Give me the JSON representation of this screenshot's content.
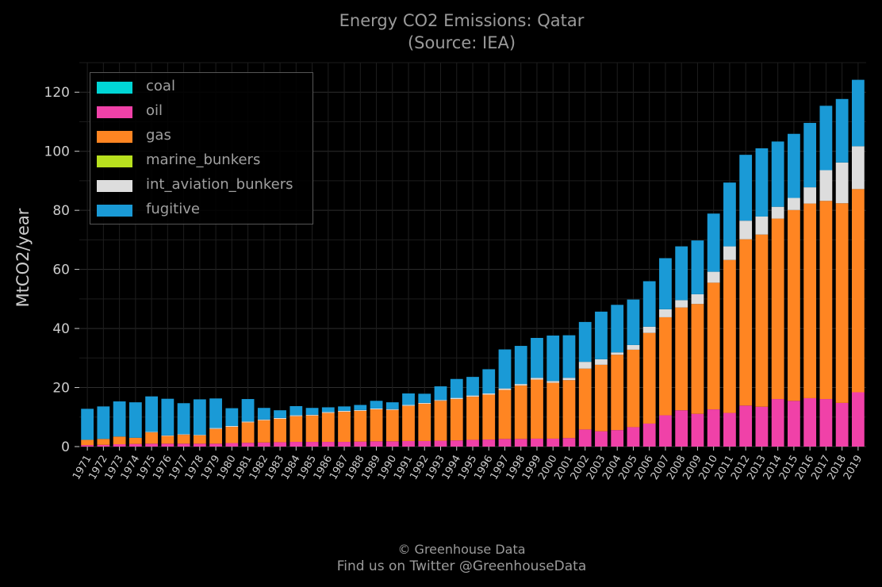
{
  "chart_data": {
    "type": "bar",
    "stacked": true,
    "title": "Energy CO2 Emissions: Qatar",
    "subtitle": "(Source: IEA)",
    "ylabel": "MtCO2/year",
    "xlabel": "",
    "ylim": [
      0,
      130
    ],
    "yticks": [
      0,
      20,
      40,
      60,
      80,
      100,
      120
    ],
    "grid": true,
    "legend_position": "top-left",
    "categories": [
      "1971",
      "1972",
      "1973",
      "1974",
      "1975",
      "1976",
      "1977",
      "1978",
      "1979",
      "1980",
      "1981",
      "1982",
      "1983",
      "1984",
      "1985",
      "1986",
      "1987",
      "1988",
      "1989",
      "1990",
      "1991",
      "1992",
      "1993",
      "1994",
      "1995",
      "1996",
      "1997",
      "1998",
      "1999",
      "2000",
      "2001",
      "2002",
      "2003",
      "2004",
      "2005",
      "2006",
      "2007",
      "2008",
      "2009",
      "2010",
      "2011",
      "2012",
      "2013",
      "2014",
      "2015",
      "2016",
      "2017",
      "2018",
      "2019"
    ],
    "series": [
      {
        "name": "coal",
        "color": "#00d5d5",
        "values": [
          0,
          0,
          0,
          0,
          0,
          0,
          0,
          0,
          0,
          0,
          0,
          0,
          0,
          0,
          0,
          0,
          0,
          0,
          0,
          0,
          0,
          0,
          0,
          0,
          0,
          0,
          0,
          0,
          0,
          0,
          0,
          0,
          0,
          0,
          0,
          0,
          0,
          0,
          0,
          0,
          0,
          0,
          0,
          0,
          0,
          0,
          0,
          0,
          0
        ]
      },
      {
        "name": "oil",
        "color": "#f041a8",
        "values": [
          0.5,
          0.6,
          0.8,
          0.9,
          1.0,
          1.0,
          1.0,
          1.0,
          1.0,
          1.2,
          1.3,
          1.4,
          1.5,
          1.6,
          1.6,
          1.6,
          1.6,
          1.7,
          1.8,
          1.8,
          1.9,
          1.9,
          2.0,
          2.1,
          2.3,
          2.4,
          2.6,
          2.6,
          2.7,
          2.7,
          2.9,
          5.8,
          5.2,
          5.6,
          6.6,
          7.8,
          10.6,
          12.3,
          11.1,
          12.6,
          11.4,
          13.9,
          13.5,
          16.1,
          15.5,
          16.4,
          16.1,
          14.8,
          18.4
        ]
      },
      {
        "name": "gas",
        "color": "#ff8522",
        "values": [
          1.8,
          2.0,
          2.6,
          2.1,
          3.8,
          2.6,
          3.0,
          2.8,
          5.0,
          5.5,
          6.9,
          7.5,
          7.9,
          8.7,
          8.9,
          9.8,
          10.2,
          10.4,
          10.8,
          10.6,
          11.9,
          12.6,
          13.5,
          14.0,
          14.6,
          15.2,
          16.6,
          18.1,
          20.0,
          18.9,
          19.6,
          20.6,
          22.5,
          25.5,
          26.2,
          30.7,
          33.2,
          34.8,
          37.2,
          42.9,
          51.8,
          56.3,
          58.3,
          61.1,
          64.6,
          65.9,
          67.1,
          67.6,
          68.8
        ]
      },
      {
        "name": "marine_bunkers",
        "color": "#b8e01e",
        "values": [
          0,
          0,
          0,
          0,
          0,
          0,
          0,
          0,
          0,
          0,
          0,
          0,
          0,
          0,
          0,
          0,
          0,
          0,
          0,
          0,
          0,
          0,
          0,
          0,
          0,
          0,
          0,
          0,
          0,
          0,
          0,
          0,
          0,
          0,
          0,
          0,
          0,
          0,
          0,
          0,
          0,
          0,
          0,
          0,
          0,
          0,
          0,
          0,
          0
        ]
      },
      {
        "name": "int_aviation_bunkers",
        "color": "#dddddd",
        "values": [
          0,
          0,
          0,
          0,
          0.2,
          0.2,
          0.2,
          0.2,
          0.3,
          0.3,
          0.3,
          0.3,
          0.3,
          0.3,
          0.3,
          0.3,
          0.3,
          0.3,
          0.3,
          0.3,
          0.3,
          0.3,
          0.3,
          0.4,
          0.4,
          0.4,
          0.5,
          0.5,
          0.6,
          0.6,
          0.8,
          2.3,
          1.9,
          0.8,
          1.6,
          2.1,
          2.7,
          2.5,
          3.3,
          3.7,
          4.6,
          6.3,
          6.1,
          4.0,
          4.1,
          5.5,
          10.4,
          13.8,
          14.5
        ]
      },
      {
        "name": "fugitive",
        "color": "#1a9ad6",
        "values": [
          10.5,
          11.0,
          11.9,
          12.0,
          12.0,
          12.4,
          10.5,
          12.0,
          10.0,
          6.0,
          7.6,
          3.9,
          2.6,
          3.1,
          2.3,
          1.6,
          1.5,
          1.7,
          2.6,
          2.3,
          3.9,
          3.1,
          4.6,
          6.4,
          6.3,
          8.2,
          13.2,
          12.9,
          13.5,
          15.4,
          14.4,
          13.5,
          16.1,
          16.1,
          15.4,
          15.4,
          17.3,
          18.2,
          18.2,
          19.7,
          21.6,
          22.3,
          23.1,
          22.1,
          21.7,
          21.8,
          21.8,
          21.5,
          22.5
        ]
      }
    ]
  },
  "footer": {
    "line1": "© Greenhouse Data",
    "line2": "Find us on Twitter @GreenhouseData"
  }
}
